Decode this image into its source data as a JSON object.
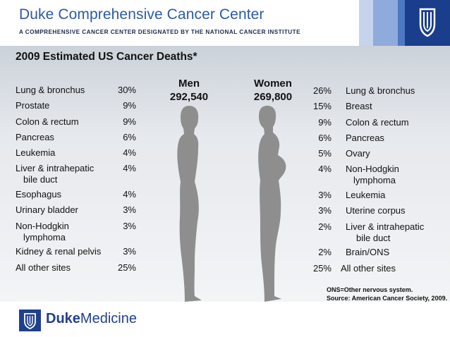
{
  "header": {
    "title": "Duke Comprehensive Cancer Center",
    "subtitle": "A COMPREHENSIVE CANCER CENTER DESIGNATED BY THE NATIONAL CANCER INSTITUTE",
    "logo_icon": "duke-shield-icon",
    "colors": {
      "brand": "#2b5aa6",
      "dark_blue": "#1a3d8c",
      "mid_blue": "#6b8fce",
      "light_blue": "#b9c9e6"
    }
  },
  "slide": {
    "title": "2009 Estimated US Cancer Deaths*",
    "men": {
      "heading": "Men",
      "total": "292,540",
      "rows": [
        {
          "site": "Lung & bronchus",
          "pct": "30%"
        },
        {
          "site": "Prostate",
          "pct": "9%"
        },
        {
          "site": "Colon & rectum",
          "pct": "9%"
        },
        {
          "site": "Pancreas",
          "pct": "6%"
        },
        {
          "site": "Leukemia",
          "pct": "4%"
        },
        {
          "site": "Liver & intrahepatic",
          "site2": "bile duct",
          "pct": "4%"
        },
        {
          "site": "Esophagus",
          "pct": "4%"
        },
        {
          "site": "Urinary bladder",
          "pct": "3%"
        },
        {
          "site": "Non-Hodgkin",
          "site2": "lymphoma",
          "pct": "3%"
        },
        {
          "site": "Kidney & renal pelvis",
          "pct": "3%"
        },
        {
          "site": "All other sites",
          "pct": "25%"
        }
      ]
    },
    "women": {
      "heading": "Women",
      "total": "269,800",
      "rows": [
        {
          "site": "Lung & bronchus",
          "pct": "26%"
        },
        {
          "site": "Breast",
          "pct": "15%"
        },
        {
          "site": "Colon & rectum",
          "pct": "9%"
        },
        {
          "site": "Pancreas",
          "pct": "6%"
        },
        {
          "site": "Ovary",
          "pct": "5%"
        },
        {
          "site": "Non-Hodgkin",
          "site2": "lymphoma",
          "pct": "4%"
        },
        {
          "site": "Leukemia",
          "pct": "3%"
        },
        {
          "site": "Uterine corpus",
          "pct": "3%"
        },
        {
          "site": "Liver & intrahepatic",
          "site2": "bile duct",
          "pct": "2%"
        },
        {
          "site": "Brain/ONS",
          "pct": "2%"
        },
        {
          "site": "All other sites",
          "pct": "25%"
        }
      ]
    },
    "notes": [
      "ONS=Other nervous system.",
      "Source: American Cancer Society, 2009."
    ]
  },
  "footer": {
    "logo_bold": "Duke",
    "logo_light": "Medicine",
    "logo_icon": "duke-shield-icon"
  }
}
